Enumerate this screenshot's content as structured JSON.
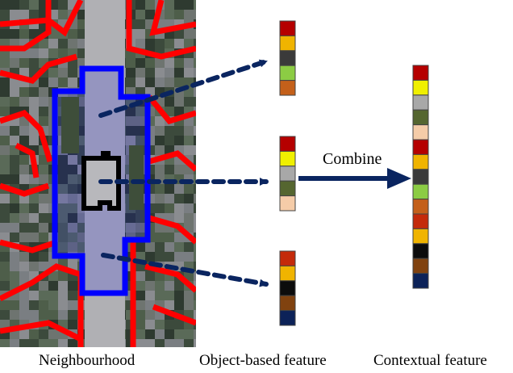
{
  "labels": {
    "neighbourhood": "Neighbourhood",
    "object_based": "Object-based feature",
    "contextual": "Contextual feature",
    "combine": "Combine"
  },
  "colors": {
    "arrow": "#0a2560",
    "neighbourhood_outline": "#0000ff",
    "object_outline": "#000000",
    "segment_outline": "#ff0000"
  },
  "feature_vectors": [
    [
      "#b50000",
      "#f0b400",
      "#3a3a3a",
      "#8ccc44",
      "#c4601a"
    ],
    [
      "#b50000",
      "#f0f000",
      "#a8a8a8",
      "#556630",
      "#f5cca8"
    ],
    [
      "#c42a0a",
      "#f0b400",
      "#0c0c0c",
      "#80420f",
      "#0c2258"
    ]
  ],
  "contextual_vector": [
    "#b50000",
    "#f0f000",
    "#a8a8a8",
    "#556630",
    "#f5cca8",
    "#b50000",
    "#f0b400",
    "#3a3a3a",
    "#8ccc44",
    "#c4601a",
    "#c42a0a",
    "#f0b400",
    "#0c0c0c",
    "#80420f",
    "#0c2258"
  ]
}
